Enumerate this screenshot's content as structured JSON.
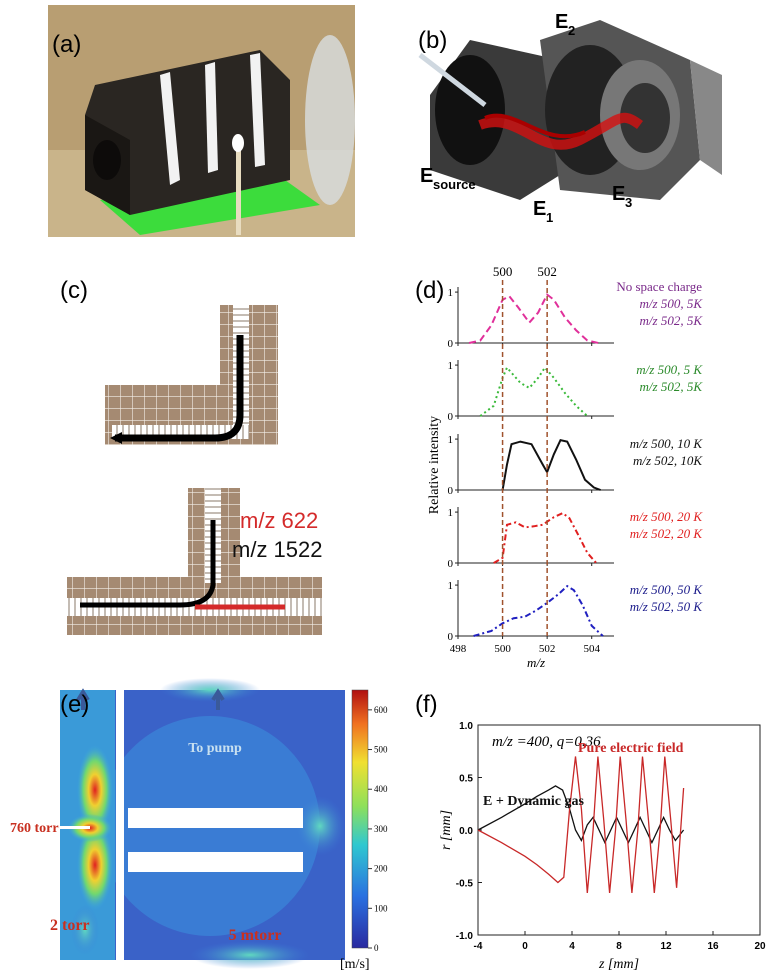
{
  "panels": {
    "a": {
      "label": "(a)"
    },
    "b": {
      "label": "(b)",
      "electrodes": [
        {
          "main": "E",
          "sub": "2"
        },
        {
          "main": "E",
          "sub": "source"
        },
        {
          "main": "E",
          "sub": "1"
        },
        {
          "main": "E",
          "sub": "3"
        }
      ]
    },
    "c": {
      "label": "(c)",
      "ion_labels": [
        {
          "text": "m/z 622",
          "color": "#d42a2a"
        },
        {
          "text": "m/z 1522",
          "color": "#111111"
        }
      ]
    },
    "e": {
      "label": "(e)",
      "annotations": [
        "To pump",
        "760 torr",
        "2 torr",
        "5 mtorr"
      ],
      "colorbar": {
        "lim": [
          0,
          650
        ],
        "ticks": [
          0,
          100,
          200,
          300,
          400,
          500,
          600
        ],
        "unit": "[m/s]"
      }
    }
  },
  "chart_data": [
    {
      "type": "line",
      "label": "(d)",
      "xlabel": "m/z",
      "ylabel": "Relative intensity",
      "xlim": [
        498,
        505
      ],
      "xticks": [
        498,
        500,
        502,
        504
      ],
      "marker_lines": [
        500,
        502
      ],
      "subplots": [
        {
          "ylim": [
            0,
            1.1
          ],
          "yticks": [
            0,
            1
          ],
          "series": [
            {
              "color": "#e0309a",
              "dash": "7 4",
              "x": [
                498.5,
                499,
                499.5,
                500,
                500.3,
                500.7,
                501.2,
                501.6,
                502,
                502.3,
                502.8,
                503.3,
                503.8,
                504.3
              ],
              "values": [
                0,
                0.05,
                0.35,
                0.85,
                0.92,
                0.7,
                0.4,
                0.6,
                0.95,
                0.85,
                0.5,
                0.25,
                0.05,
                0
              ]
            }
          ],
          "labels": [
            {
              "text": "No space charge",
              "color": "#7a2a8a"
            },
            {
              "text": "m/z 500, 5K",
              "color": "#7a2a8a"
            },
            {
              "text": "m/z 502, 5K",
              "color": "#7a2a8a"
            }
          ]
        },
        {
          "ylim": [
            0,
            1.1
          ],
          "yticks": [
            0,
            1
          ],
          "series": [
            {
              "color": "#3aba3a",
              "dash": "2 3",
              "x": [
                499,
                499.6,
                500,
                500.2,
                500.5,
                500.8,
                501.2,
                501.6,
                501.9,
                502.3,
                502.8,
                503.3,
                503.8
              ],
              "values": [
                0,
                0.2,
                0.75,
                0.95,
                0.8,
                0.65,
                0.55,
                0.75,
                0.95,
                0.75,
                0.45,
                0.2,
                0
              ]
            }
          ],
          "labels": [
            {
              "text": "m/z 500, 5 K",
              "color": "#2a8a2a"
            },
            {
              "text": "m/z 502, 5K",
              "color": "#2a8a2a"
            }
          ]
        },
        {
          "ylim": [
            0,
            1.1
          ],
          "yticks": [
            0,
            1
          ],
          "series": [
            {
              "color": "#111111",
              "dash": "none",
              "x": [
                500,
                500.2,
                500.4,
                500.8,
                501.3,
                501.8,
                502,
                502.3,
                502.6,
                502.9,
                503.3,
                503.7,
                504.1,
                504.4
              ],
              "values": [
                0,
                0.5,
                0.9,
                0.95,
                0.9,
                0.5,
                0.35,
                0.7,
                0.98,
                0.95,
                0.6,
                0.2,
                0.05,
                0
              ]
            }
          ],
          "labels": [
            {
              "text": "m/z 500, 10 K",
              "color": "#111111"
            },
            {
              "text": "m/z 502, 10K",
              "color": "#111111"
            }
          ]
        },
        {
          "ylim": [
            0,
            1.1
          ],
          "yticks": [
            0,
            1
          ],
          "series": [
            {
              "color": "#e02020",
              "dash": "6 3 2 3",
              "x": [
                499.6,
                500,
                500.2,
                500.6,
                501,
                501.4,
                501.8,
                502.3,
                502.7,
                503,
                503.4,
                503.8,
                504.2
              ],
              "values": [
                0,
                0.1,
                0.75,
                0.8,
                0.7,
                0.72,
                0.75,
                0.9,
                0.98,
                0.88,
                0.55,
                0.2,
                0
              ]
            }
          ],
          "labels": [
            {
              "text": "m/z 500, 20 K",
              "color": "#e02020"
            },
            {
              "text": "m/z 502, 20 K",
              "color": "#e02020"
            }
          ]
        },
        {
          "ylim": [
            0,
            1.1
          ],
          "yticks": [
            0,
            1
          ],
          "series": [
            {
              "color": "#2020c0",
              "dash": "6 3 2 3",
              "x": [
                498.7,
                499.5,
                500,
                500.5,
                501,
                501.5,
                502,
                502.5,
                502.9,
                503.2,
                503.6,
                504,
                504.5
              ],
              "values": [
                0,
                0.1,
                0.25,
                0.35,
                0.38,
                0.5,
                0.65,
                0.82,
                0.98,
                0.9,
                0.6,
                0.2,
                0
              ]
            }
          ],
          "labels": [
            {
              "text": "m/z 500, 50 K",
              "color": "#1a1a8a"
            },
            {
              "text": "m/z 502, 50 K",
              "color": "#1a1a8a"
            }
          ]
        }
      ]
    },
    {
      "type": "line",
      "label": "(f)",
      "title": "m/z =400, q=0.36",
      "xlabel": "z [mm]",
      "ylabel": "r [mm]",
      "xlim": [
        -4,
        20
      ],
      "ylim": [
        -1,
        1
      ],
      "xticks": [
        -4,
        0,
        4,
        8,
        12,
        16,
        20
      ],
      "yticks": [
        {
          "value": -1,
          "label": "-1.0"
        },
        -0.5,
        {
          "value": 0,
          "label": "0.0"
        },
        0.5,
        {
          "value": 1,
          "label": "1.0"
        }
      ],
      "series": [
        {
          "name": "E + Dynamic gas",
          "color": "#111111",
          "x": [
            -4,
            -2,
            0,
            1,
            2,
            2.6,
            3.2,
            3.8,
            4.3,
            4.8,
            5.3,
            5.8,
            6.3,
            6.8,
            7.3,
            7.8,
            8.3,
            8.8,
            9.3,
            9.8,
            10.3,
            10.8,
            11.3,
            11.8,
            12.3,
            12.8,
            13.5
          ],
          "values": [
            0,
            0.12,
            0.25,
            0.32,
            0.38,
            0.42,
            0.38,
            0.2,
            0,
            -0.1,
            0.05,
            0.12,
            0,
            -0.12,
            0,
            0.12,
            0,
            -0.12,
            0,
            0.12,
            0,
            -0.12,
            0,
            0.12,
            0,
            -0.1,
            0
          ]
        },
        {
          "name": "Pure electric field",
          "color": "#c82828",
          "x": [
            -4,
            -2,
            0,
            1,
            2,
            2.8,
            3.3,
            3.8,
            4.3,
            4.8,
            5.3,
            5.8,
            6.2,
            6.7,
            7.2,
            7.7,
            8.1,
            8.6,
            9.1,
            9.6,
            10,
            10.5,
            11,
            11.5,
            11.9,
            12.4,
            12.9,
            13.5
          ],
          "values": [
            0,
            -0.12,
            -0.25,
            -0.33,
            -0.42,
            -0.5,
            -0.45,
            0.2,
            0.7,
            0.2,
            -0.6,
            0,
            0.7,
            0.1,
            -0.6,
            0,
            0.7,
            0.1,
            -0.6,
            0,
            0.7,
            0.1,
            -0.6,
            0,
            0.7,
            0.1,
            -0.55,
            0.4
          ]
        }
      ]
    }
  ]
}
